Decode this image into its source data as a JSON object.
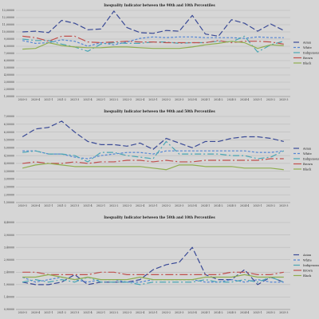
{
  "chart_data": [
    {
      "type": "line",
      "title": "Inequality Indicator between the 90th and 10th Percentiles",
      "x": [
        "2020-3",
        "2020-4",
        "2021-1",
        "2021-2",
        "2021-3",
        "2021-4",
        "2022-1",
        "2022-2",
        "2022-3",
        "2022-4",
        "2023-1",
        "2023-2",
        "2023-3",
        "2023-4",
        "2024-1",
        "2024-2",
        "2024-3",
        "2024-4",
        "2025-1",
        "2025-2",
        "2025-3"
      ],
      "y_ticks": [
        "1,00000",
        "2,00000",
        "3,00000",
        "4,00000",
        "5,00000",
        "6,00000",
        "7,00000",
        "8,00000",
        "9,00000",
        "10,00000",
        "11,00000",
        "12,00000",
        "13,00000"
      ],
      "ylim": [
        1,
        13
      ],
      "grid": true,
      "legend_position": "right",
      "series": [
        {
          "name": "Asian",
          "color": "#3a4a96",
          "dash": "7,3",
          "values": [
            10.0,
            10.1,
            9.9,
            11.6,
            11.2,
            10.3,
            10.4,
            12.9,
            10.6,
            9.9,
            9.8,
            10.2,
            10.1,
            12.3,
            9.7,
            9.4,
            11.7,
            11.2,
            10.1,
            11.1,
            10.2
          ]
        },
        {
          "name": "White",
          "color": "#5586d4",
          "dash": "3,2",
          "values": [
            8.8,
            8.4,
            8.5,
            8.9,
            8.7,
            8.0,
            8.5,
            8.2,
            8.6,
            9.1,
            9.3,
            9.2,
            9.3,
            9.3,
            9.2,
            9.2,
            9.2,
            9.1,
            9.3,
            9.2,
            9.2
          ]
        },
        {
          "name": "Indigenous",
          "color": "#4aa6b4",
          "dash": "8,3,2,3",
          "values": [
            9.0,
            8.8,
            8.8,
            8.3,
            7.9,
            7.3,
            8.3,
            8.5,
            8.4,
            8.4,
            8.6,
            8.6,
            8.4,
            8.5,
            8.5,
            8.7,
            8.6,
            9.4,
            7.2,
            8.2,
            8.7
          ]
        },
        {
          "name": "Brown",
          "color": "#c0504d",
          "dash": "10,3,2,3",
          "values": [
            9.4,
            9.2,
            8.7,
            9.4,
            9.4,
            8.6,
            8.5,
            8.6,
            8.7,
            8.6,
            8.6,
            8.5,
            8.5,
            8.5,
            8.5,
            8.8,
            8.5,
            8.7,
            8.7,
            8.6,
            8.3
          ]
        },
        {
          "name": "Black",
          "color": "#8fae4f",
          "dash": "",
          "values": [
            7.6,
            7.7,
            8.5,
            8.1,
            7.9,
            7.8,
            7.8,
            7.9,
            7.9,
            7.8,
            7.7,
            7.7,
            7.7,
            7.9,
            8.2,
            8.4,
            8.7,
            8.5,
            7.7,
            8.2,
            8.1
          ]
        }
      ]
    },
    {
      "type": "line",
      "title": "Inequality Indicator between the 90th and 50th Percentiles",
      "x": [
        "2020-3",
        "2020-4",
        "2021-1",
        "2021-2",
        "2021-3",
        "2021-4",
        "2022-1",
        "2022-2",
        "2022-3",
        "2022-4",
        "2023-1",
        "2023-2",
        "2023-3",
        "2023-4",
        "2024-1",
        "2024-2",
        "2024-3",
        "2024-4",
        "2025-1",
        "2025-2",
        "2025-3"
      ],
      "y_ticks": [
        "1,50000",
        "2,00000",
        "2,50000",
        "3,00000",
        "3,50000",
        "4,00000",
        "4,50000",
        "5,00000",
        "5,50000",
        "6,00000",
        "6,50000",
        "7,00000"
      ],
      "ylim": [
        1.5,
        7
      ],
      "grid": true,
      "legend_position": "right",
      "series": [
        {
          "name": "Asian",
          "color": "#3a4a96",
          "dash": "7,3",
          "values": [
            5.7,
            6.2,
            6.3,
            6.7,
            6.0,
            5.4,
            5.2,
            5.2,
            5.1,
            5.3,
            4.9,
            5.6,
            5.3,
            5.0,
            5.4,
            5.4,
            5.6,
            5.7,
            5.7,
            5.6,
            5.4
          ]
        },
        {
          "name": "White",
          "color": "#5586d4",
          "dash": "3,2",
          "values": [
            4.8,
            4.8,
            4.6,
            4.6,
            4.4,
            4.3,
            4.5,
            4.6,
            4.7,
            4.7,
            4.6,
            4.8,
            4.8,
            4.8,
            4.8,
            4.8,
            4.8,
            4.8,
            4.7,
            4.7,
            4.8
          ]
        },
        {
          "name": "Indigenous",
          "color": "#4aa6b4",
          "dash": "8,3,2,3",
          "values": [
            4.7,
            4.8,
            4.6,
            4.6,
            4.5,
            4.1,
            4.7,
            4.7,
            4.5,
            4.4,
            4.3,
            5.4,
            4.6,
            4.6,
            4.6,
            4.6,
            4.5,
            4.5,
            4.3,
            4.4,
            4.8
          ]
        },
        {
          "name": "Brown",
          "color": "#c0504d",
          "dash": "10,3,2,3",
          "values": [
            4.0,
            4.1,
            4.0,
            4.0,
            4.1,
            4.0,
            4.1,
            4.1,
            4.2,
            4.2,
            4.1,
            4.2,
            4.1,
            4.1,
            4.2,
            4.2,
            4.2,
            4.2,
            4.2,
            4.3,
            4.3
          ]
        },
        {
          "name": "Black",
          "color": "#8fae4f",
          "dash": "",
          "values": [
            3.7,
            3.9,
            4.0,
            3.9,
            3.8,
            3.8,
            3.8,
            3.8,
            3.8,
            3.8,
            3.7,
            3.6,
            3.9,
            3.9,
            3.8,
            3.8,
            3.8,
            3.7,
            3.7,
            3.7,
            3.6
          ]
        }
      ]
    },
    {
      "type": "line",
      "title": "Inequality Indicator between the 50th and 10th Percentiles",
      "x": [
        "2020-3",
        "2020-4",
        "2021-1",
        "2021-2",
        "2021-3",
        "2021-4",
        "2022-1",
        "2022-2",
        "2022-3",
        "2022-4",
        "2023-1",
        "2023-2",
        "2023-3",
        "2023-4",
        "2024-1",
        "2024-2",
        "2024-3",
        "2024-4",
        "2025-1",
        "2025-2",
        "2025-3"
      ],
      "y_ticks": [
        "0,90000",
        "1,40000",
        "1,90000",
        "2,40000",
        "2,90000",
        "3,40000",
        "3,90000",
        "4,40000"
      ],
      "ylim": [
        0.9,
        4.4
      ],
      "grid": true,
      "legend_position": "right",
      "series": [
        {
          "name": "Asian",
          "color": "#3a4a96",
          "dash": "7,3",
          "values": [
            2.0,
            1.9,
            1.9,
            2.0,
            2.3,
            1.9,
            2.0,
            2.0,
            2.0,
            2.1,
            2.5,
            2.7,
            2.8,
            3.4,
            2.3,
            2.1,
            2.1,
            2.5,
            1.9,
            2.2,
            2.0
          ]
        },
        {
          "name": "White",
          "color": "#5586d4",
          "dash": "3,2",
          "values": [
            2.2,
            2.0,
            2.1,
            2.2,
            2.1,
            2.0,
            2.1,
            2.1,
            2.0,
            2.0,
            2.1,
            2.1,
            2.1,
            2.1,
            2.0,
            2.0,
            2.1,
            2.0,
            2.1,
            2.0,
            2.0
          ]
        },
        {
          "name": "Indigenous",
          "color": "#4aa6b4",
          "dash": "8,3,2,3",
          "values": [
            2.0,
            2.1,
            2.0,
            2.1,
            2.0,
            2.2,
            2.0,
            2.0,
            2.0,
            1.9,
            2.0,
            2.0,
            2.0,
            2.0,
            2.1,
            2.0,
            2.0,
            2.1,
            2.0,
            2.2,
            2.0
          ]
        },
        {
          "name": "Brown",
          "color": "#c0504d",
          "dash": "10,3,2,3",
          "values": [
            2.4,
            2.4,
            2.3,
            2.3,
            2.3,
            2.3,
            2.4,
            2.4,
            2.3,
            2.3,
            2.3,
            2.3,
            2.3,
            2.3,
            2.3,
            2.3,
            2.4,
            2.4,
            2.3,
            2.3,
            2.4
          ]
        },
        {
          "name": "Black",
          "color": "#8fae4f",
          "dash": "",
          "values": [
            2.2,
            2.2,
            2.3,
            2.2,
            2.1,
            2.2,
            2.1,
            2.1,
            2.1,
            2.2,
            2.1,
            2.1,
            2.1,
            2.1,
            2.2,
            2.2,
            2.2,
            2.3,
            2.2,
            2.2,
            2.2
          ]
        }
      ]
    }
  ]
}
